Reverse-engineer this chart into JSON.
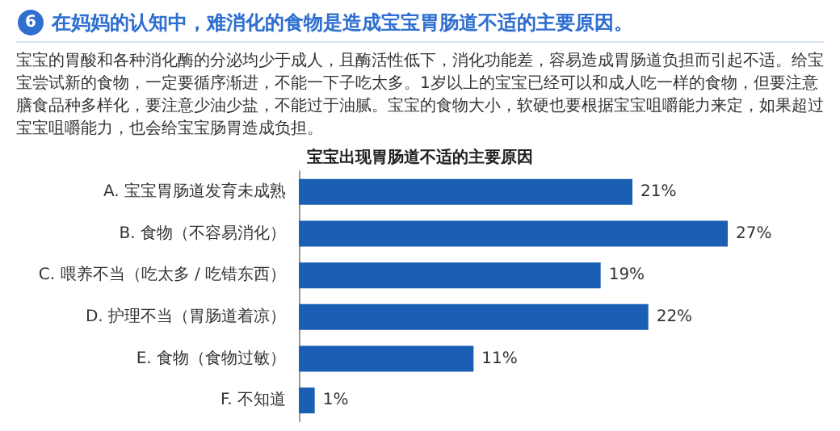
{
  "chart_data": {
    "type": "bar",
    "orientation": "horizontal",
    "title": "宝宝出现胃肠道不适的主要原因",
    "annotations": [
      "6",
      "在妈妈的认知中，难消化的食物是造成宝宝胃肠道不适的主要原因。",
      "宝宝的胃酸和各种消化酶的分泌均少于成人，且酶活性低下，消化功能差，容易造成胃肠道负担而引起不适。给宝宝尝试新的食物，一定要循序渐进，不能一下子吃太多。1岁以上的宝宝已经可以和成人吃一样的食物，但要注意膳食品种多样化，要注意少油少盐，不能过于油腻。宝宝的食物大小，软硬也要根据宝宝咀嚼能力来定，如果超过宝宝咀嚼能力，也会给宝宝肠胃造成负担。"
    ],
    "categories": [
      "A. 宝宝胃肠道发育未成熟",
      "B. 食物（不容易消化）",
      "C. 喂养不当（吃太多 / 吃错东西）",
      "D. 护理不当（胃肠道着凉）",
      "E. 食物（食物过敏）",
      "F. 不知道"
    ],
    "values": [
      21,
      27,
      19,
      22,
      11,
      1
    ],
    "value_labels": [
      "21%",
      "27%",
      "19%",
      "22%",
      "11%",
      "1%"
    ],
    "color": "#1a5fb4"
  }
}
